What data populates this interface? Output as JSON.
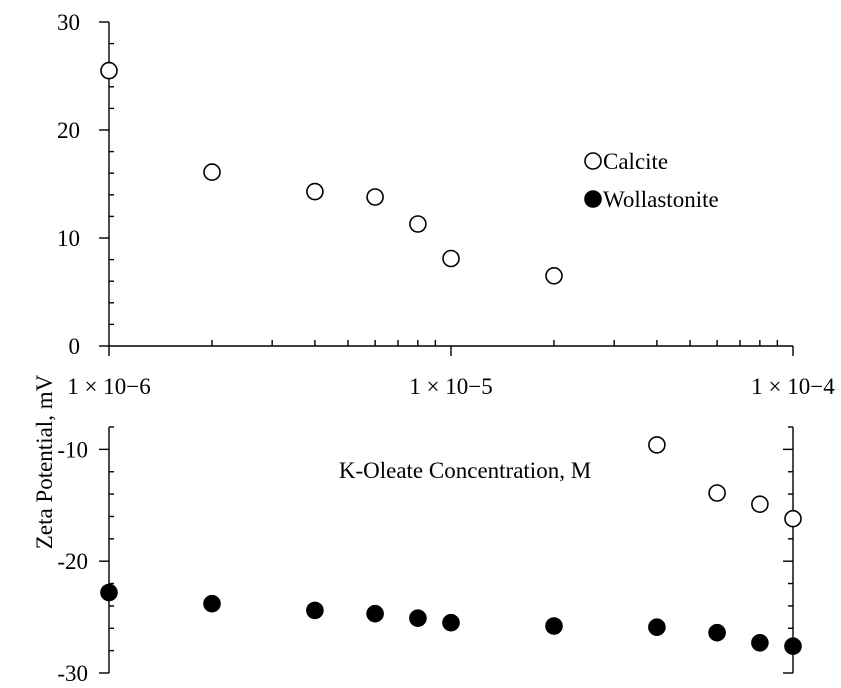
{
  "chart_data": {
    "type": "scatter",
    "xlabel": "K-Oleate Concentration, M",
    "ylabel": "Zeta Potential, mV",
    "x_scale": "log",
    "xlim": [
      1e-06,
      0.0001
    ],
    "x_tick_values": [
      1e-06,
      1e-05,
      0.0001
    ],
    "x_tick_labels": [
      "1 × 10−6",
      "1 × 10−5",
      "1 × 10−4"
    ],
    "y_axis_break": true,
    "upper_ylim": [
      0,
      30
    ],
    "upper_y_ticks": [
      "0",
      "10",
      "20",
      "30"
    ],
    "lower_ylim": [
      -30,
      -8
    ],
    "lower_y_ticks": [
      "-10",
      "-20",
      "-30"
    ],
    "legend_position": "upper-right",
    "series": [
      {
        "name": "Calcite",
        "marker": "open-circle",
        "color": "#000000",
        "points": [
          {
            "x": 1e-06,
            "y": 25.5
          },
          {
            "x": 2e-06,
            "y": 16.1
          },
          {
            "x": 4e-06,
            "y": 14.3
          },
          {
            "x": 6e-06,
            "y": 13.8
          },
          {
            "x": 8e-06,
            "y": 11.3
          },
          {
            "x": 1e-05,
            "y": 8.1
          },
          {
            "x": 2e-05,
            "y": 6.5
          },
          {
            "x": 4e-05,
            "y": -9.6
          },
          {
            "x": 6e-05,
            "y": -13.9
          },
          {
            "x": 8e-05,
            "y": -14.9
          },
          {
            "x": 0.0001,
            "y": -16.2
          }
        ]
      },
      {
        "name": "Wollastonite",
        "marker": "filled-circle",
        "color": "#000000",
        "points": [
          {
            "x": 1e-06,
            "y": -22.8
          },
          {
            "x": 2e-06,
            "y": -23.8
          },
          {
            "x": 4e-06,
            "y": -24.4
          },
          {
            "x": 6e-06,
            "y": -24.7
          },
          {
            "x": 8e-06,
            "y": -25.1
          },
          {
            "x": 1e-05,
            "y": -25.5
          },
          {
            "x": 2e-05,
            "y": -25.8
          },
          {
            "x": 4e-05,
            "y": -25.9
          },
          {
            "x": 6e-05,
            "y": -26.4
          },
          {
            "x": 8e-05,
            "y": -27.3
          },
          {
            "x": 0.0001,
            "y": -27.6
          }
        ]
      }
    ]
  }
}
